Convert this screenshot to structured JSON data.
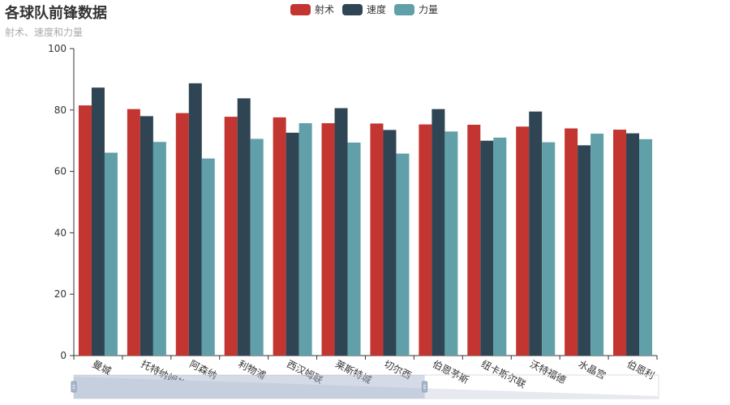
{
  "header": {
    "title": "各球队前锋数据",
    "subtitle": "射术、速度和力量"
  },
  "legend": {
    "items": [
      {
        "label": "射术",
        "color": "#c23531"
      },
      {
        "label": "速度",
        "color": "#2f4554"
      },
      {
        "label": "力量",
        "color": "#61a0a8"
      }
    ]
  },
  "chart_data": {
    "type": "bar",
    "title": "各球队前锋数据",
    "subtitle": "射术、速度和力量",
    "categories": [
      "曼城",
      "托特纳姆热刺",
      "阿森纳",
      "利物浦",
      "西汉姆联",
      "莱斯特城",
      "切尔西",
      "伯恩茅斯",
      "纽卡斯尔联",
      "沃特福德",
      "水晶宫",
      "伯恩利"
    ],
    "series": [
      {
        "name": "射术",
        "color": "#c23531",
        "values": [
          81.5,
          80.3,
          79.0,
          77.8,
          77.6,
          75.7,
          75.6,
          75.3,
          75.2,
          74.6,
          74.0,
          73.6
        ]
      },
      {
        "name": "速度",
        "color": "#2f4554",
        "values": [
          87.3,
          78.0,
          88.7,
          83.8,
          72.6,
          80.6,
          73.5,
          80.3,
          70.0,
          79.5,
          68.5,
          72.4
        ]
      },
      {
        "name": "力量",
        "color": "#61a0a8",
        "values": [
          66.1,
          69.6,
          64.2,
          70.6,
          75.7,
          69.4,
          65.8,
          73.0,
          71.0,
          69.5,
          72.3,
          70.5
        ]
      }
    ],
    "ylim": [
      0,
      100
    ],
    "yticks": [
      0,
      20,
      40,
      60,
      80,
      100
    ],
    "grid": false,
    "legend_position": "top-center",
    "datazoom": {
      "start_percent": 0,
      "end_percent": 60
    }
  }
}
